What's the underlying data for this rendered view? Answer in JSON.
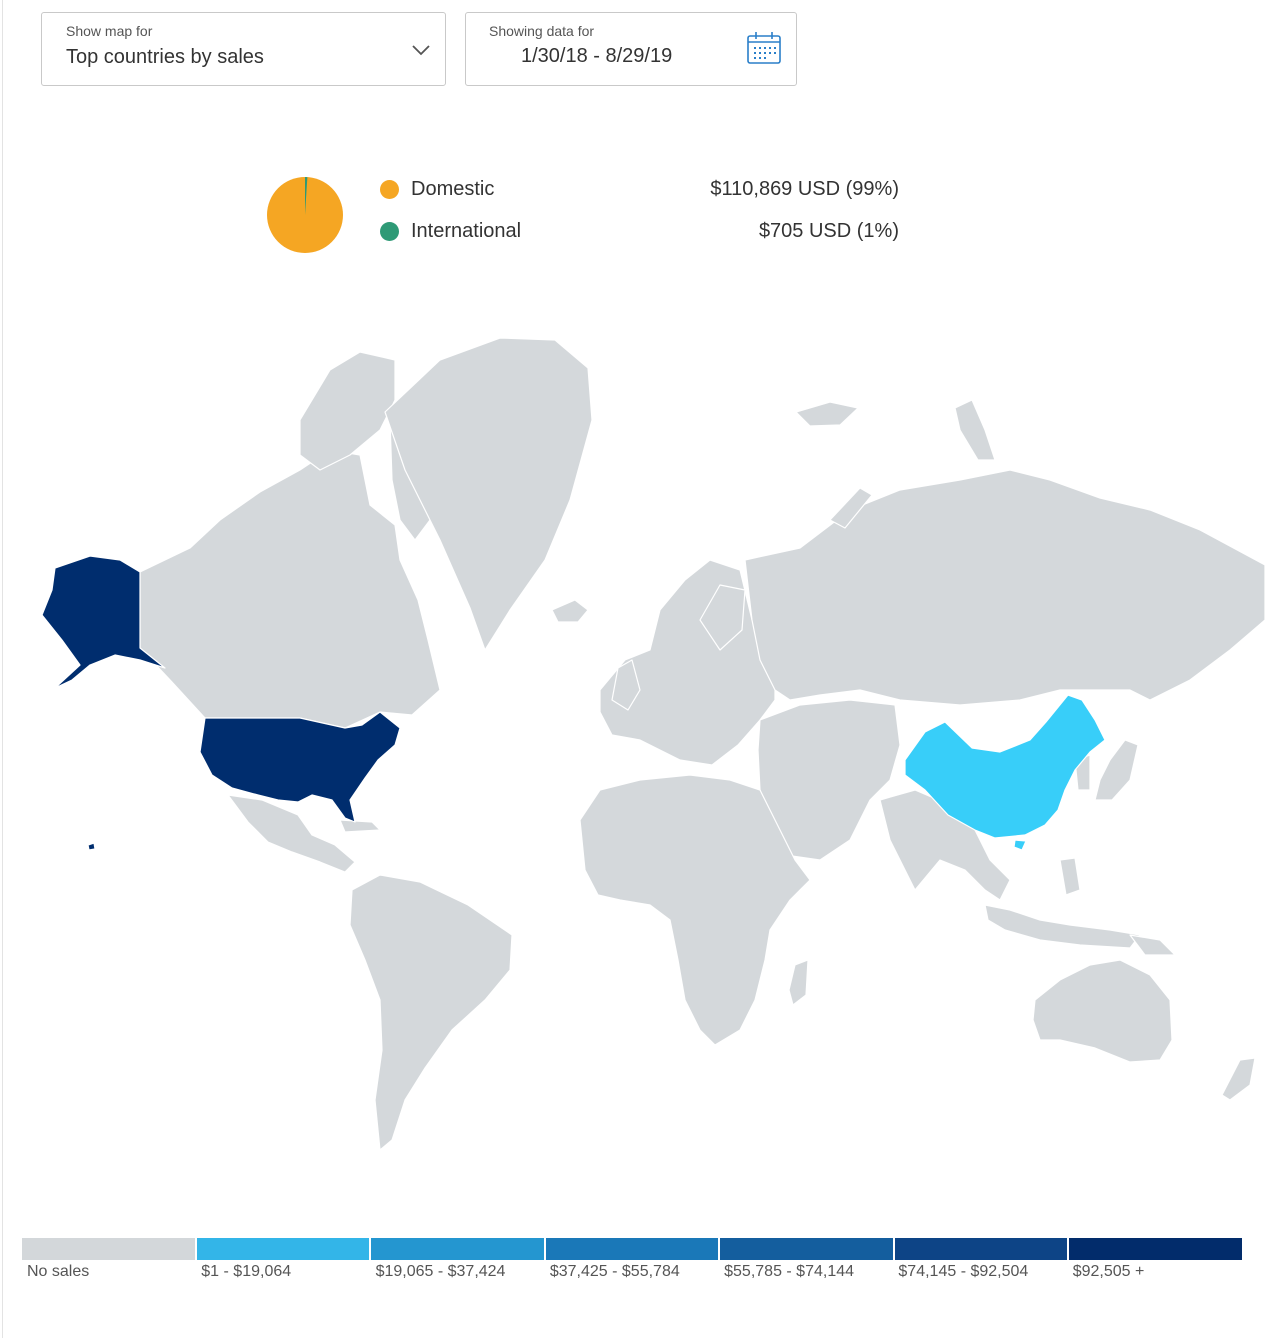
{
  "map_selector": {
    "caption": "Show map for",
    "value": "Top countries by sales"
  },
  "date_range": {
    "caption": "Showing data for",
    "value": "1/30/18 - 8/29/19"
  },
  "sales_split": [
    {
      "label": "Domestic",
      "amount": "$110,869 USD (99%)",
      "share": 0.99,
      "color": "#f5a623"
    },
    {
      "label": "International",
      "amount": "$705 USD (1%)",
      "share": 0.01,
      "color": "#2e9a76"
    }
  ],
  "map": {
    "no_sales_color": "#d4d8db",
    "highlighted": [
      {
        "country": "United States",
        "color": "#002d6e"
      },
      {
        "country": "China",
        "color": "#38cef9"
      }
    ]
  },
  "scale": [
    {
      "label": "No sales",
      "color": "#d3d7da"
    },
    {
      "label": "$1 - $19,064",
      "color": "#33b5e8"
    },
    {
      "label": "$19,065 - $37,424",
      "color": "#2496d0"
    },
    {
      "label": "$37,425 - $55,784",
      "color": "#1a78b8"
    },
    {
      "label": "$55,785 - $74,144",
      "color": "#145e9e"
    },
    {
      "label": "$74,145 - $92,504",
      "color": "#0d4486"
    },
    {
      "label": "$92,505 +",
      "color": "#022c6b"
    }
  ]
}
